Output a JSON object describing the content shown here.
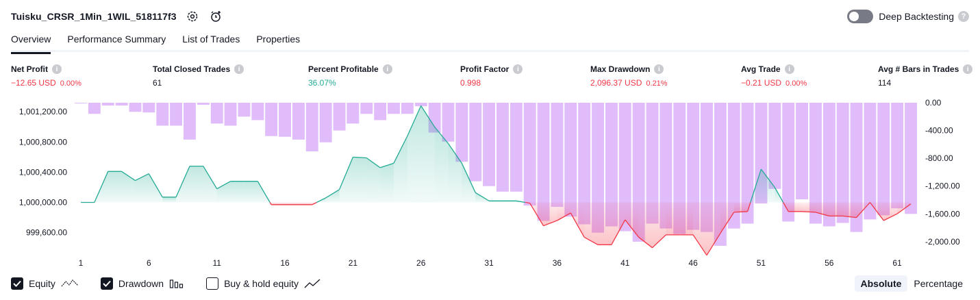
{
  "strategy": {
    "title": "Tuisku_CRSR_1Min_1WIL_518117f3"
  },
  "header": {
    "deep_backtesting_label": "Deep Backtesting",
    "help_glyph": "?"
  },
  "tabs": [
    {
      "label": "Overview",
      "active": true
    },
    {
      "label": "Performance Summary",
      "active": false
    },
    {
      "label": "List of Trades",
      "active": false
    },
    {
      "label": "Properties",
      "active": false
    }
  ],
  "stats": [
    {
      "label": "Net Profit",
      "value": "−12.65 USD",
      "sub": "0.00%",
      "tone": "neg"
    },
    {
      "label": "Total Closed Trades",
      "value": "61",
      "sub": "",
      "tone": "neutral"
    },
    {
      "label": "Percent Profitable",
      "value": "36.07%",
      "sub": "",
      "tone": "pos"
    },
    {
      "label": "Profit Factor",
      "value": "0.998",
      "sub": "",
      "tone": "neg"
    },
    {
      "label": "Max Drawdown",
      "value": "2,096.37 USD",
      "sub": "0.21%",
      "tone": "neg"
    },
    {
      "label": "Avg Trade",
      "value": "−0.21 USD",
      "sub": "0.00%",
      "tone": "neg"
    },
    {
      "label": "Avg # Bars in Trades",
      "value": "114",
      "sub": "",
      "tone": "neutral"
    }
  ],
  "chart_data": {
    "type": "line",
    "x_ticks": [
      "1",
      "6",
      "11",
      "16",
      "21",
      "26",
      "31",
      "36",
      "41",
      "46",
      "51",
      "56",
      "61"
    ],
    "y_left_ticks": [
      "1,001,200.00",
      "1,000,800.00",
      "1,000,400.00",
      "1,000,000.00",
      "999,600.00"
    ],
    "y_right_ticks": [
      "0.00",
      "-400.00",
      "-800.00",
      "-1,200.00",
      "-1,600.00",
      "-2,000.00"
    ],
    "ylim_left": [
      999370,
      1001320
    ],
    "ylim_right": [
      -2100,
      0
    ],
    "baseline": 1000000,
    "series": [
      {
        "name": "Equity",
        "x": [
          1,
          2,
          3,
          4,
          5,
          6,
          7,
          8,
          9,
          10,
          11,
          12,
          13,
          14,
          15,
          16,
          17,
          18,
          19,
          20,
          21,
          22,
          23,
          24,
          25,
          26,
          27,
          28,
          29,
          30,
          31,
          32,
          33,
          34,
          35,
          36,
          37,
          38,
          39,
          40,
          41,
          42,
          43,
          44,
          45,
          46,
          47,
          48,
          49,
          50,
          51,
          52,
          53,
          54,
          55,
          56,
          57,
          58,
          59,
          60,
          61,
          62
        ],
        "values": [
          1000000,
          1000000,
          1000410,
          1000410,
          1000290,
          1000380,
          1000070,
          1000070,
          1000480,
          1000480,
          1000180,
          1000280,
          1000280,
          1000280,
          999970,
          999970,
          999970,
          999970,
          1000060,
          1000170,
          1000600,
          1000590,
          1000460,
          1000520,
          1000880,
          1001280,
          1001000,
          1000780,
          1000520,
          1000130,
          1000020,
          1000020,
          1000020,
          999990,
          999690,
          999760,
          999860,
          999540,
          999440,
          999440,
          999770,
          999540,
          999400,
          999570,
          999570,
          999570,
          999300,
          999590,
          999870,
          999880,
          1000440,
          1000200,
          999880,
          999880,
          999870,
          999820,
          999820,
          999800,
          1000000,
          999760,
          999850,
          999980
        ]
      },
      {
        "name": "Drawdown",
        "values": [
          0,
          -160,
          -40,
          -40,
          -130,
          -140,
          -330,
          -330,
          -530,
          -30,
          -300,
          -330,
          -200,
          -250,
          -480,
          -490,
          -530,
          -700,
          -570,
          -400,
          -300,
          -160,
          -250,
          -160,
          -160,
          -50,
          -430,
          -560,
          -850,
          -1130,
          -1200,
          -1280,
          -1280,
          -1480,
          -1700,
          -1500,
          -1640,
          -1750,
          -1870,
          -1780,
          -1850,
          -2000,
          -1740,
          -1810,
          -1890,
          -1830,
          -1860,
          -2060,
          -1810,
          -1740,
          -1450,
          -1240,
          -1710,
          -1390,
          -1740,
          -1780,
          -1730,
          -1860,
          -1680,
          -1620,
          -1520,
          -1600
        ]
      }
    ]
  },
  "legend": [
    {
      "label": "Equity",
      "checked": true,
      "icon": "equity-line-icon"
    },
    {
      "label": "Drawdown",
      "checked": true,
      "icon": "drawdown-bars-icon"
    },
    {
      "label": "Buy & hold equity",
      "checked": false,
      "icon": "buy-hold-line-icon"
    }
  ],
  "mode": {
    "absolute_label": "Absolute",
    "percentage_label": "Percentage",
    "active": "absolute"
  },
  "colors": {
    "equity_up": "#22ab94",
    "equity_down": "#f23645",
    "drawdown_bar": "#ce93f8",
    "text": "#131722"
  }
}
